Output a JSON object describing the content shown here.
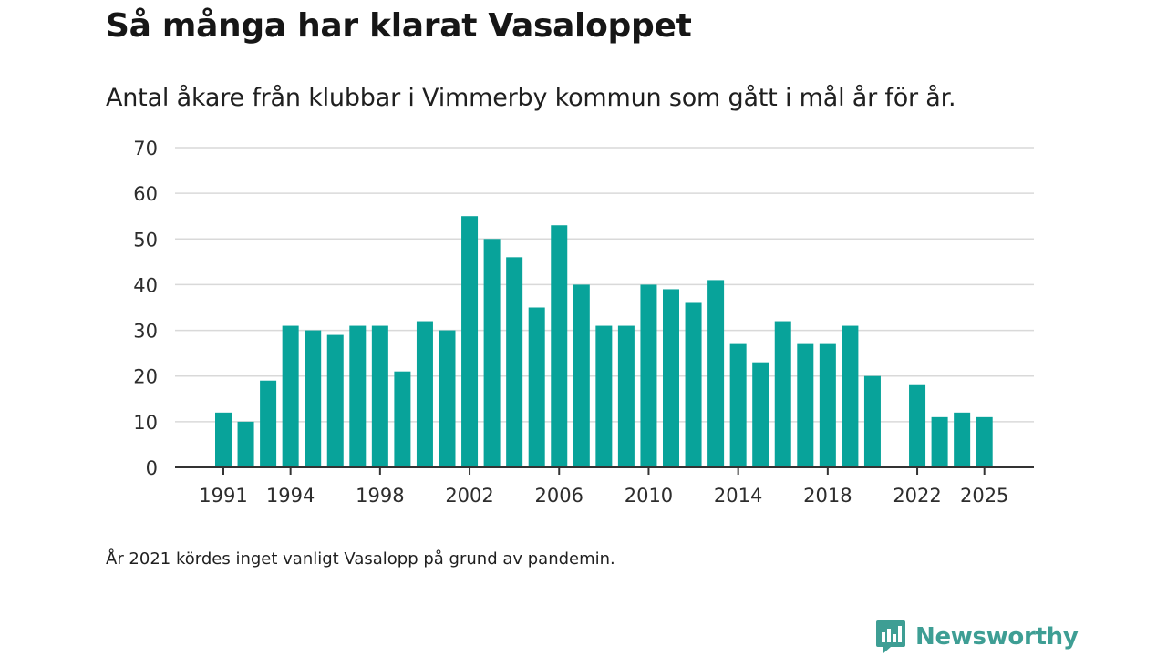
{
  "title": "Så många har klarat Vasaloppet",
  "subtitle": "Antal åkare från klubbar i Vimmerby kommun som gått i mål år för år.",
  "footnote": "År 2021 kördes inget vanligt Vasalopp på grund av pandemin.",
  "brand": {
    "name": "Newsworthy",
    "color": "#3e9e94",
    "icon": "newsworthy-logo-icon"
  },
  "colors": {
    "bar": "#08a39a",
    "grid": "#d9d9d9",
    "axis": "#333333"
  },
  "chart_data": {
    "type": "bar",
    "title": "Så många har klarat Vasaloppet",
    "xlabel": "",
    "ylabel": "",
    "ylim": [
      0,
      70
    ],
    "yticks": [
      0,
      10,
      20,
      30,
      40,
      50,
      60,
      70
    ],
    "xticks": [
      1991,
      1994,
      1998,
      2002,
      2006,
      2010,
      2014,
      2018,
      2022,
      2025
    ],
    "categories": [
      1991,
      1992,
      1993,
      1994,
      1995,
      1996,
      1997,
      1998,
      1999,
      2000,
      2001,
      2002,
      2003,
      2004,
      2005,
      2006,
      2007,
      2008,
      2009,
      2010,
      2011,
      2012,
      2013,
      2014,
      2015,
      2016,
      2017,
      2018,
      2019,
      2020,
      2021,
      2022,
      2023,
      2024,
      2025
    ],
    "values": [
      12,
      10,
      19,
      31,
      30,
      29,
      31,
      31,
      21,
      32,
      30,
      55,
      50,
      46,
      35,
      53,
      40,
      31,
      31,
      40,
      39,
      36,
      41,
      27,
      23,
      32,
      27,
      27,
      31,
      20,
      null,
      18,
      11,
      12,
      11
    ],
    "grid": true
  }
}
